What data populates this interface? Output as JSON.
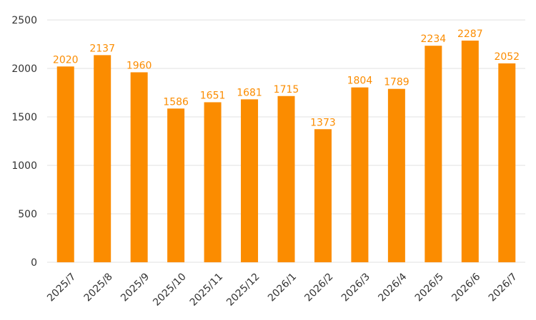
{
  "chart_data": {
    "type": "bar",
    "categories": [
      "2025/7",
      "2025/8",
      "2025/9",
      "2025/10",
      "2025/11",
      "2025/12",
      "2026/1",
      "2026/2",
      "2026/3",
      "2026/4",
      "2026/5",
      "2026/6",
      "2026/7"
    ],
    "values": [
      2020,
      2137,
      1960,
      1586,
      1651,
      1681,
      1715,
      1373,
      1804,
      1789,
      2234,
      2287,
      2052
    ],
    "color": "#fb8c00",
    "ylim": [
      0,
      2500
    ],
    "yticks": [
      0,
      500,
      1000,
      1500,
      2000,
      2500
    ],
    "grid": true
  }
}
